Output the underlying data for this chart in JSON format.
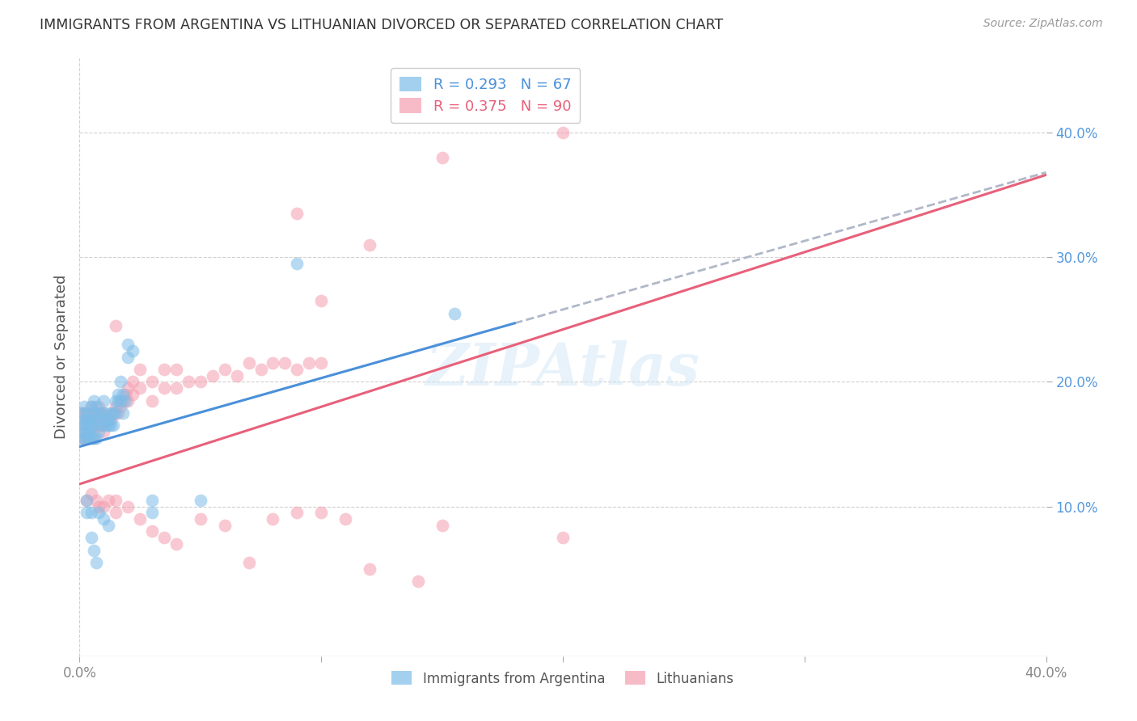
{
  "title": "IMMIGRANTS FROM ARGENTINA VS LITHUANIAN DIVORCED OR SEPARATED CORRELATION CHART",
  "source": "Source: ZipAtlas.com",
  "ylabel": "Divorced or Separated",
  "right_ytick_values": [
    0.1,
    0.2,
    0.3,
    0.4
  ],
  "xmin": 0.0,
  "xmax": 0.4,
  "ymin": -0.02,
  "ymax": 0.46,
  "blue_color": "#7dbde8",
  "pink_color": "#f59eb0",
  "blue_line_color": "#4a90d9",
  "pink_line_color": "#e8607a",
  "gray_dash_color": "#b0b8c8",
  "blue_R": 0.293,
  "blue_N": 67,
  "pink_R": 0.375,
  "pink_N": 90,
  "blue_line_intercept": 0.148,
  "blue_line_slope": 0.55,
  "blue_line_solid_end": 0.18,
  "pink_line_intercept": 0.118,
  "pink_line_slope": 0.62,
  "blue_scatter": [
    [
      0.001,
      0.155
    ],
    [
      0.001,
      0.165
    ],
    [
      0.001,
      0.175
    ],
    [
      0.001,
      0.16
    ],
    [
      0.002,
      0.155
    ],
    [
      0.002,
      0.165
    ],
    [
      0.002,
      0.17
    ],
    [
      0.002,
      0.18
    ],
    [
      0.003,
      0.155
    ],
    [
      0.003,
      0.16
    ],
    [
      0.003,
      0.17
    ],
    [
      0.003,
      0.175
    ],
    [
      0.004,
      0.155
    ],
    [
      0.004,
      0.16
    ],
    [
      0.004,
      0.165
    ],
    [
      0.004,
      0.17
    ],
    [
      0.005,
      0.155
    ],
    [
      0.005,
      0.165
    ],
    [
      0.005,
      0.17
    ],
    [
      0.005,
      0.18
    ],
    [
      0.006,
      0.155
    ],
    [
      0.006,
      0.165
    ],
    [
      0.006,
      0.175
    ],
    [
      0.006,
      0.185
    ],
    [
      0.007,
      0.155
    ],
    [
      0.007,
      0.17
    ],
    [
      0.007,
      0.18
    ],
    [
      0.008,
      0.16
    ],
    [
      0.008,
      0.175
    ],
    [
      0.009,
      0.165
    ],
    [
      0.009,
      0.175
    ],
    [
      0.01,
      0.17
    ],
    [
      0.01,
      0.185
    ],
    [
      0.011,
      0.165
    ],
    [
      0.011,
      0.175
    ],
    [
      0.012,
      0.165
    ],
    [
      0.012,
      0.17
    ],
    [
      0.013,
      0.165
    ],
    [
      0.013,
      0.175
    ],
    [
      0.014,
      0.165
    ],
    [
      0.014,
      0.175
    ],
    [
      0.015,
      0.175
    ],
    [
      0.015,
      0.185
    ],
    [
      0.016,
      0.185
    ],
    [
      0.016,
      0.19
    ],
    [
      0.017,
      0.185
    ],
    [
      0.017,
      0.2
    ],
    [
      0.018,
      0.175
    ],
    [
      0.018,
      0.19
    ],
    [
      0.019,
      0.185
    ],
    [
      0.02,
      0.22
    ],
    [
      0.02,
      0.23
    ],
    [
      0.022,
      0.225
    ],
    [
      0.003,
      0.105
    ],
    [
      0.003,
      0.095
    ],
    [
      0.005,
      0.095
    ],
    [
      0.005,
      0.075
    ],
    [
      0.006,
      0.065
    ],
    [
      0.007,
      0.055
    ],
    [
      0.008,
      0.095
    ],
    [
      0.01,
      0.09
    ],
    [
      0.012,
      0.085
    ],
    [
      0.03,
      0.105
    ],
    [
      0.03,
      0.095
    ],
    [
      0.05,
      0.105
    ],
    [
      0.09,
      0.295
    ],
    [
      0.155,
      0.255
    ]
  ],
  "pink_scatter": [
    [
      0.001,
      0.155
    ],
    [
      0.001,
      0.165
    ],
    [
      0.001,
      0.175
    ],
    [
      0.002,
      0.155
    ],
    [
      0.002,
      0.165
    ],
    [
      0.002,
      0.175
    ],
    [
      0.003,
      0.155
    ],
    [
      0.003,
      0.16
    ],
    [
      0.003,
      0.175
    ],
    [
      0.004,
      0.155
    ],
    [
      0.004,
      0.165
    ],
    [
      0.004,
      0.17
    ],
    [
      0.005,
      0.16
    ],
    [
      0.005,
      0.17
    ],
    [
      0.005,
      0.18
    ],
    [
      0.006,
      0.155
    ],
    [
      0.006,
      0.165
    ],
    [
      0.006,
      0.175
    ],
    [
      0.007,
      0.165
    ],
    [
      0.007,
      0.175
    ],
    [
      0.008,
      0.165
    ],
    [
      0.008,
      0.18
    ],
    [
      0.009,
      0.165
    ],
    [
      0.009,
      0.175
    ],
    [
      0.01,
      0.16
    ],
    [
      0.01,
      0.175
    ],
    [
      0.011,
      0.17
    ],
    [
      0.012,
      0.17
    ],
    [
      0.013,
      0.17
    ],
    [
      0.014,
      0.175
    ],
    [
      0.015,
      0.18
    ],
    [
      0.015,
      0.245
    ],
    [
      0.016,
      0.175
    ],
    [
      0.017,
      0.18
    ],
    [
      0.018,
      0.185
    ],
    [
      0.019,
      0.19
    ],
    [
      0.02,
      0.185
    ],
    [
      0.02,
      0.195
    ],
    [
      0.022,
      0.19
    ],
    [
      0.022,
      0.2
    ],
    [
      0.025,
      0.195
    ],
    [
      0.025,
      0.21
    ],
    [
      0.03,
      0.185
    ],
    [
      0.03,
      0.2
    ],
    [
      0.035,
      0.195
    ],
    [
      0.035,
      0.21
    ],
    [
      0.04,
      0.195
    ],
    [
      0.04,
      0.21
    ],
    [
      0.045,
      0.2
    ],
    [
      0.05,
      0.2
    ],
    [
      0.055,
      0.205
    ],
    [
      0.06,
      0.21
    ],
    [
      0.065,
      0.205
    ],
    [
      0.07,
      0.215
    ],
    [
      0.075,
      0.21
    ],
    [
      0.08,
      0.215
    ],
    [
      0.085,
      0.215
    ],
    [
      0.09,
      0.21
    ],
    [
      0.095,
      0.215
    ],
    [
      0.1,
      0.215
    ],
    [
      0.003,
      0.105
    ],
    [
      0.005,
      0.11
    ],
    [
      0.007,
      0.105
    ],
    [
      0.008,
      0.1
    ],
    [
      0.01,
      0.1
    ],
    [
      0.012,
      0.105
    ],
    [
      0.015,
      0.105
    ],
    [
      0.015,
      0.095
    ],
    [
      0.02,
      0.1
    ],
    [
      0.025,
      0.09
    ],
    [
      0.03,
      0.08
    ],
    [
      0.035,
      0.075
    ],
    [
      0.04,
      0.07
    ],
    [
      0.05,
      0.09
    ],
    [
      0.06,
      0.085
    ],
    [
      0.07,
      0.055
    ],
    [
      0.08,
      0.09
    ],
    [
      0.09,
      0.095
    ],
    [
      0.1,
      0.095
    ],
    [
      0.11,
      0.09
    ],
    [
      0.12,
      0.05
    ],
    [
      0.14,
      0.04
    ],
    [
      0.15,
      0.085
    ],
    [
      0.2,
      0.075
    ],
    [
      0.1,
      0.265
    ],
    [
      0.12,
      0.31
    ],
    [
      0.15,
      0.38
    ],
    [
      0.16,
      0.42
    ],
    [
      0.2,
      0.4
    ],
    [
      0.09,
      0.335
    ]
  ]
}
